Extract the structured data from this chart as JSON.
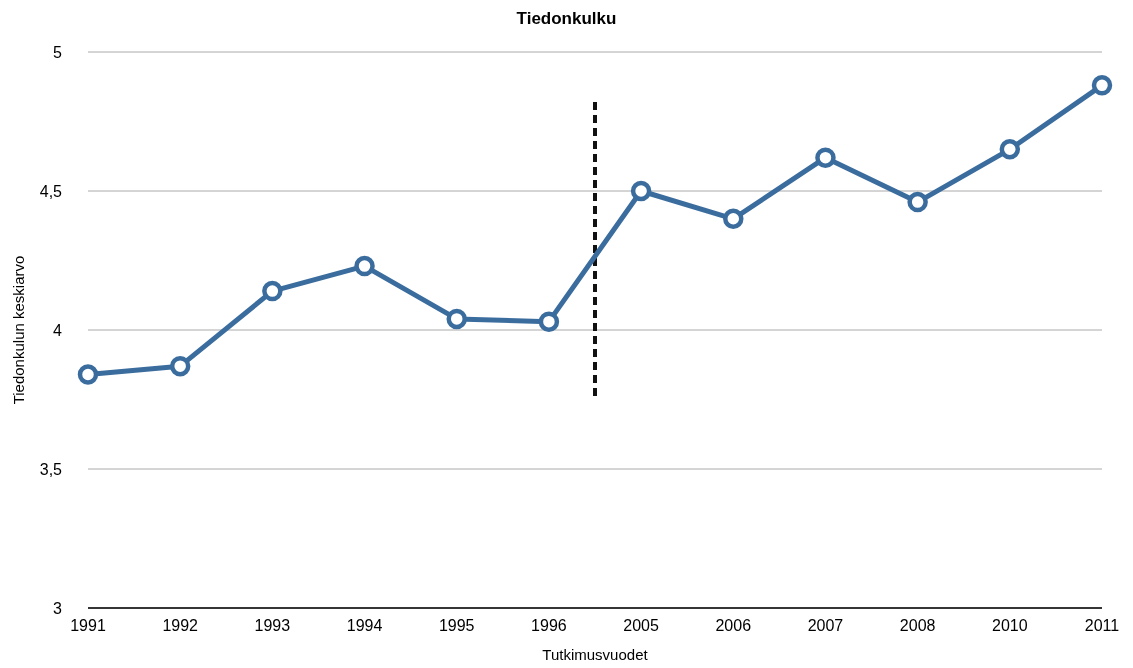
{
  "chart_data": {
    "type": "line",
    "title": "Tiedonkulku",
    "xlabel": "Tutkimusvuodet",
    "ylabel": "Tiedonkulun keskiarvo",
    "categories": [
      "1991",
      "1992",
      "1993",
      "1994",
      "1995",
      "1996",
      "2005",
      "2006",
      "2007",
      "2008",
      "2010",
      "2011"
    ],
    "series": [
      {
        "color": "#3b6c9e",
        "values": [
          3.84,
          3.87,
          4.14,
          4.23,
          4.04,
          4.03,
          4.5,
          4.4,
          4.62,
          4.46,
          4.65,
          4.88
        ]
      }
    ],
    "ylim": [
      3,
      5
    ],
    "yticks": [
      3,
      {
        "value": 3.5,
        "label": "3,5"
      },
      4,
      {
        "value": 4.5,
        "label": "4,5"
      },
      5
    ],
    "grid": "y",
    "marker": "circle",
    "line_style": "solid"
  }
}
